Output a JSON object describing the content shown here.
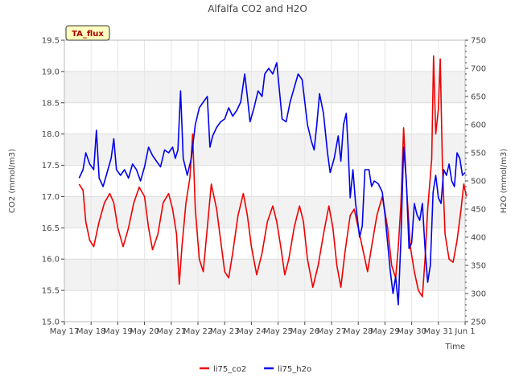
{
  "chart_data": {
    "type": "line",
    "title": "Alfalfa CO2 and H2O",
    "xlabel": "Time",
    "ylabel_left": "CO2 (mmol/m3)",
    "ylabel_right": "H2O (mmol/m3)",
    "badge": "TA_flux",
    "x_ticks": [
      "May 17",
      "May 18",
      "May 19",
      "May 20",
      "May 21",
      "May 22",
      "May 23",
      "May 24",
      "May 25",
      "May 26",
      "May 27",
      "May 28",
      "May 29",
      "May 30",
      "May 31",
      "Jun 1"
    ],
    "xlim": [
      0,
      15
    ],
    "ylim_left": [
      15.0,
      19.5
    ],
    "ylim_right": [
      250,
      750
    ],
    "y_ticks_left": [
      "15.0",
      "15.5",
      "16.0",
      "16.5",
      "17.0",
      "17.5",
      "18.0",
      "18.5",
      "19.0",
      "19.5"
    ],
    "y_ticks_right": [
      "250",
      "300",
      "350",
      "400",
      "450",
      "500",
      "550",
      "600",
      "650",
      "700",
      "750"
    ],
    "grid": "horizontal bands",
    "legend_position": "bottom",
    "series": [
      {
        "name": "li75_co2",
        "color": "#ee0000",
        "axis": "left",
        "points": [
          [
            0.55,
            17.2
          ],
          [
            0.7,
            17.1
          ],
          [
            0.8,
            16.6
          ],
          [
            0.95,
            16.3
          ],
          [
            1.1,
            16.2
          ],
          [
            1.3,
            16.6
          ],
          [
            1.5,
            16.9
          ],
          [
            1.7,
            17.05
          ],
          [
            1.85,
            16.9
          ],
          [
            2.0,
            16.5
          ],
          [
            2.2,
            16.2
          ],
          [
            2.4,
            16.5
          ],
          [
            2.6,
            16.9
          ],
          [
            2.8,
            17.15
          ],
          [
            3.0,
            17.0
          ],
          [
            3.15,
            16.5
          ],
          [
            3.3,
            16.15
          ],
          [
            3.5,
            16.4
          ],
          [
            3.7,
            16.9
          ],
          [
            3.9,
            17.05
          ],
          [
            4.05,
            16.8
          ],
          [
            4.2,
            16.4
          ],
          [
            4.3,
            15.6
          ],
          [
            4.4,
            16.2
          ],
          [
            4.55,
            16.9
          ],
          [
            4.7,
            17.3
          ],
          [
            4.8,
            18.0
          ],
          [
            4.9,
            16.8
          ],
          [
            5.05,
            16.0
          ],
          [
            5.2,
            15.8
          ],
          [
            5.35,
            16.5
          ],
          [
            5.5,
            17.2
          ],
          [
            5.7,
            16.8
          ],
          [
            5.85,
            16.3
          ],
          [
            6.0,
            15.8
          ],
          [
            6.15,
            15.7
          ],
          [
            6.3,
            16.1
          ],
          [
            6.5,
            16.7
          ],
          [
            6.7,
            17.05
          ],
          [
            6.85,
            16.7
          ],
          [
            7.0,
            16.2
          ],
          [
            7.2,
            15.75
          ],
          [
            7.4,
            16.1
          ],
          [
            7.6,
            16.6
          ],
          [
            7.8,
            16.85
          ],
          [
            7.95,
            16.6
          ],
          [
            8.1,
            16.2
          ],
          [
            8.25,
            15.75
          ],
          [
            8.4,
            16.0
          ],
          [
            8.6,
            16.5
          ],
          [
            8.8,
            16.85
          ],
          [
            8.95,
            16.6
          ],
          [
            9.1,
            16.0
          ],
          [
            9.3,
            15.55
          ],
          [
            9.5,
            15.9
          ],
          [
            9.7,
            16.4
          ],
          [
            9.9,
            16.85
          ],
          [
            10.05,
            16.5
          ],
          [
            10.2,
            15.9
          ],
          [
            10.35,
            15.55
          ],
          [
            10.5,
            16.1
          ],
          [
            10.7,
            16.7
          ],
          [
            10.85,
            16.8
          ],
          [
            11.0,
            16.5
          ],
          [
            11.2,
            16.1
          ],
          [
            11.35,
            15.8
          ],
          [
            11.5,
            16.2
          ],
          [
            11.7,
            16.7
          ],
          [
            11.9,
            17.0
          ],
          [
            12.1,
            16.5
          ],
          [
            12.25,
            15.9
          ],
          [
            12.4,
            15.7
          ],
          [
            12.5,
            16.2
          ],
          [
            12.6,
            16.9
          ],
          [
            12.7,
            18.1
          ],
          [
            12.8,
            17.2
          ],
          [
            12.95,
            16.2
          ],
          [
            13.1,
            15.8
          ],
          [
            13.25,
            15.5
          ],
          [
            13.4,
            15.4
          ],
          [
            13.5,
            16.0
          ],
          [
            13.6,
            16.8
          ],
          [
            13.75,
            17.6
          ],
          [
            13.82,
            19.25
          ],
          [
            13.9,
            18.0
          ],
          [
            14.0,
            18.4
          ],
          [
            14.07,
            19.2
          ],
          [
            14.15,
            17.5
          ],
          [
            14.25,
            16.4
          ],
          [
            14.4,
            16.0
          ],
          [
            14.55,
            15.95
          ],
          [
            14.7,
            16.3
          ],
          [
            14.85,
            16.8
          ],
          [
            14.95,
            17.2
          ],
          [
            15.05,
            17.0
          ]
        ]
      },
      {
        "name": "li75_h2o",
        "color": "#0000ee",
        "axis": "right",
        "points": [
          [
            0.55,
            505
          ],
          [
            0.7,
            520
          ],
          [
            0.8,
            550
          ],
          [
            0.95,
            530
          ],
          [
            1.1,
            520
          ],
          [
            1.2,
            590
          ],
          [
            1.3,
            505
          ],
          [
            1.45,
            490
          ],
          [
            1.6,
            515
          ],
          [
            1.75,
            540
          ],
          [
            1.85,
            575
          ],
          [
            1.95,
            520
          ],
          [
            2.1,
            510
          ],
          [
            2.25,
            520
          ],
          [
            2.4,
            505
          ],
          [
            2.55,
            530
          ],
          [
            2.7,
            520
          ],
          [
            2.85,
            500
          ],
          [
            3.0,
            525
          ],
          [
            3.15,
            560
          ],
          [
            3.3,
            545
          ],
          [
            3.45,
            535
          ],
          [
            3.6,
            525
          ],
          [
            3.75,
            555
          ],
          [
            3.9,
            550
          ],
          [
            4.05,
            560
          ],
          [
            4.15,
            540
          ],
          [
            4.25,
            555
          ],
          [
            4.35,
            660
          ],
          [
            4.45,
            540
          ],
          [
            4.6,
            510
          ],
          [
            4.75,
            540
          ],
          [
            4.9,
            600
          ],
          [
            5.05,
            630
          ],
          [
            5.2,
            640
          ],
          [
            5.35,
            650
          ],
          [
            5.45,
            560
          ],
          [
            5.55,
            580
          ],
          [
            5.7,
            595
          ],
          [
            5.85,
            605
          ],
          [
            6.0,
            610
          ],
          [
            6.15,
            630
          ],
          [
            6.3,
            615
          ],
          [
            6.45,
            625
          ],
          [
            6.6,
            640
          ],
          [
            6.75,
            690
          ],
          [
            6.85,
            650
          ],
          [
            6.95,
            605
          ],
          [
            7.1,
            630
          ],
          [
            7.25,
            660
          ],
          [
            7.4,
            650
          ],
          [
            7.5,
            690
          ],
          [
            7.65,
            700
          ],
          [
            7.8,
            690
          ],
          [
            7.95,
            710
          ],
          [
            8.05,
            660
          ],
          [
            8.15,
            610
          ],
          [
            8.3,
            605
          ],
          [
            8.45,
            640
          ],
          [
            8.6,
            665
          ],
          [
            8.75,
            690
          ],
          [
            8.9,
            680
          ],
          [
            9.0,
            640
          ],
          [
            9.1,
            600
          ],
          [
            9.25,
            570
          ],
          [
            9.35,
            555
          ],
          [
            9.45,
            600
          ],
          [
            9.55,
            655
          ],
          [
            9.7,
            620
          ],
          [
            9.85,
            550
          ],
          [
            9.95,
            515
          ],
          [
            10.1,
            540
          ],
          [
            10.25,
            580
          ],
          [
            10.35,
            535
          ],
          [
            10.45,
            600
          ],
          [
            10.55,
            620
          ],
          [
            10.62,
            560
          ],
          [
            10.7,
            470
          ],
          [
            10.8,
            520
          ],
          [
            10.9,
            460
          ],
          [
            11.05,
            400
          ],
          [
            11.15,
            420
          ],
          [
            11.25,
            520
          ],
          [
            11.4,
            520
          ],
          [
            11.5,
            490
          ],
          [
            11.6,
            500
          ],
          [
            11.75,
            495
          ],
          [
            11.9,
            480
          ],
          [
            12.0,
            440
          ],
          [
            12.1,
            390
          ],
          [
            12.2,
            340
          ],
          [
            12.3,
            300
          ],
          [
            12.4,
            330
          ],
          [
            12.5,
            280
          ],
          [
            12.6,
            400
          ],
          [
            12.7,
            560
          ],
          [
            12.8,
            500
          ],
          [
            12.9,
            380
          ],
          [
            13.0,
            390
          ],
          [
            13.1,
            460
          ],
          [
            13.2,
            440
          ],
          [
            13.3,
            430
          ],
          [
            13.4,
            460
          ],
          [
            13.5,
            380
          ],
          [
            13.6,
            320
          ],
          [
            13.7,
            350
          ],
          [
            13.8,
            480
          ],
          [
            13.9,
            510
          ],
          [
            14.0,
            470
          ],
          [
            14.1,
            460
          ],
          [
            14.2,
            520
          ],
          [
            14.3,
            510
          ],
          [
            14.4,
            530
          ],
          [
            14.5,
            500
          ],
          [
            14.6,
            490
          ],
          [
            14.7,
            550
          ],
          [
            14.8,
            540
          ],
          [
            14.9,
            510
          ],
          [
            15.0,
            515
          ]
        ]
      }
    ]
  }
}
